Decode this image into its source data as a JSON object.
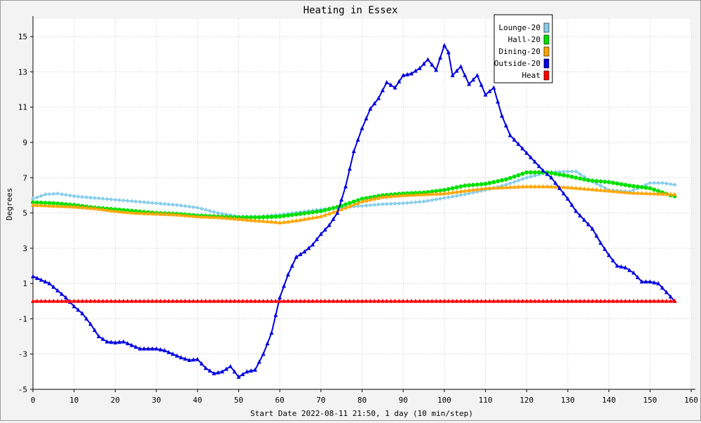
{
  "chart_data": {
    "type": "line",
    "title": "Heating in Essex",
    "xlabel": "Start Date 2022-08-11 21:50, 1 day (10 min/step)",
    "ylabel": "Degrees",
    "xlim": [
      0,
      160
    ],
    "ylim": [
      -5,
      16
    ],
    "xticks": [
      0,
      10,
      20,
      30,
      40,
      50,
      60,
      70,
      80,
      90,
      100,
      110,
      120,
      130,
      140,
      150,
      160
    ],
    "yticks": [
      -5,
      -3,
      -1,
      1,
      3,
      5,
      7,
      9,
      11,
      13,
      15
    ],
    "grid": true,
    "legend_position": "top-right",
    "series": [
      {
        "name": "Lounge-20",
        "color": "#87ceeb",
        "marker": "diamond",
        "points": [
          [
            0,
            5.8
          ],
          [
            3,
            6.05
          ],
          [
            6,
            6.1
          ],
          [
            10,
            5.95
          ],
          [
            15,
            5.85
          ],
          [
            20,
            5.75
          ],
          [
            25,
            5.65
          ],
          [
            30,
            5.55
          ],
          [
            35,
            5.45
          ],
          [
            40,
            5.3
          ],
          [
            45,
            5.0
          ],
          [
            50,
            4.8
          ],
          [
            55,
            4.8
          ],
          [
            60,
            4.9
          ],
          [
            65,
            5.05
          ],
          [
            70,
            5.2
          ],
          [
            75,
            5.3
          ],
          [
            80,
            5.4
          ],
          [
            85,
            5.5
          ],
          [
            90,
            5.55
          ],
          [
            95,
            5.65
          ],
          [
            100,
            5.85
          ],
          [
            105,
            6.05
          ],
          [
            110,
            6.3
          ],
          [
            115,
            6.6
          ],
          [
            120,
            7.0
          ],
          [
            125,
            7.3
          ],
          [
            130,
            7.35
          ],
          [
            132,
            7.35
          ],
          [
            135,
            6.9
          ],
          [
            140,
            6.3
          ],
          [
            145,
            6.2
          ],
          [
            150,
            6.7
          ],
          [
            153,
            6.7
          ],
          [
            156,
            6.6
          ]
        ]
      },
      {
        "name": "Hall-20",
        "color": "#00e000",
        "marker": "circle",
        "points": [
          [
            0,
            5.6
          ],
          [
            5,
            5.55
          ],
          [
            10,
            5.45
          ],
          [
            15,
            5.3
          ],
          [
            20,
            5.2
          ],
          [
            25,
            5.1
          ],
          [
            30,
            5.0
          ],
          [
            35,
            4.95
          ],
          [
            40,
            4.85
          ],
          [
            45,
            4.8
          ],
          [
            50,
            4.75
          ],
          [
            55,
            4.75
          ],
          [
            60,
            4.8
          ],
          [
            65,
            4.95
          ],
          [
            70,
            5.1
          ],
          [
            75,
            5.4
          ],
          [
            80,
            5.8
          ],
          [
            85,
            6.0
          ],
          [
            90,
            6.1
          ],
          [
            95,
            6.15
          ],
          [
            100,
            6.3
          ],
          [
            105,
            6.55
          ],
          [
            110,
            6.65
          ],
          [
            115,
            6.9
          ],
          [
            120,
            7.3
          ],
          [
            125,
            7.3
          ],
          [
            130,
            7.1
          ],
          [
            135,
            6.85
          ],
          [
            140,
            6.75
          ],
          [
            145,
            6.55
          ],
          [
            150,
            6.4
          ],
          [
            155,
            6.0
          ],
          [
            156,
            5.95
          ]
        ]
      },
      {
        "name": "Dining-20",
        "color": "#ffa500",
        "marker": "triangle",
        "points": [
          [
            0,
            5.45
          ],
          [
            5,
            5.4
          ],
          [
            10,
            5.35
          ],
          [
            15,
            5.25
          ],
          [
            20,
            5.1
          ],
          [
            25,
            5.0
          ],
          [
            30,
            4.95
          ],
          [
            35,
            4.9
          ],
          [
            40,
            4.8
          ],
          [
            45,
            4.75
          ],
          [
            50,
            4.65
          ],
          [
            55,
            4.55
          ],
          [
            58,
            4.5
          ],
          [
            60,
            4.45
          ],
          [
            62,
            4.5
          ],
          [
            65,
            4.6
          ],
          [
            70,
            4.8
          ],
          [
            75,
            5.2
          ],
          [
            80,
            5.65
          ],
          [
            85,
            5.9
          ],
          [
            90,
            6.0
          ],
          [
            95,
            6.05
          ],
          [
            100,
            6.1
          ],
          [
            105,
            6.25
          ],
          [
            110,
            6.4
          ],
          [
            115,
            6.45
          ],
          [
            120,
            6.5
          ],
          [
            125,
            6.5
          ],
          [
            130,
            6.45
          ],
          [
            135,
            6.35
          ],
          [
            140,
            6.25
          ],
          [
            145,
            6.15
          ],
          [
            150,
            6.1
          ],
          [
            156,
            6.05
          ]
        ]
      },
      {
        "name": "Outside-20",
        "color": "#0000e0",
        "marker": "triangle",
        "points": [
          [
            0,
            1.4
          ],
          [
            2,
            1.2
          ],
          [
            4,
            1.0
          ],
          [
            6,
            0.6
          ],
          [
            8,
            0.2
          ],
          [
            10,
            -0.3
          ],
          [
            12,
            -0.7
          ],
          [
            14,
            -1.3
          ],
          [
            16,
            -2.0
          ],
          [
            18,
            -2.3
          ],
          [
            20,
            -2.35
          ],
          [
            22,
            -2.3
          ],
          [
            24,
            -2.5
          ],
          [
            26,
            -2.7
          ],
          [
            28,
            -2.7
          ],
          [
            30,
            -2.7
          ],
          [
            32,
            -2.8
          ],
          [
            34,
            -3.0
          ],
          [
            36,
            -3.2
          ],
          [
            38,
            -3.35
          ],
          [
            40,
            -3.3
          ],
          [
            42,
            -3.8
          ],
          [
            44,
            -4.1
          ],
          [
            46,
            -4.0
          ],
          [
            48,
            -3.7
          ],
          [
            50,
            -4.3
          ],
          [
            52,
            -4.0
          ],
          [
            54,
            -3.9
          ],
          [
            56,
            -3.0
          ],
          [
            58,
            -1.8
          ],
          [
            59,
            -0.8
          ],
          [
            60,
            0.2
          ],
          [
            62,
            1.5
          ],
          [
            64,
            2.5
          ],
          [
            66,
            2.8
          ],
          [
            68,
            3.2
          ],
          [
            70,
            3.8
          ],
          [
            72,
            4.3
          ],
          [
            74,
            5.0
          ],
          [
            76,
            6.5
          ],
          [
            78,
            8.5
          ],
          [
            80,
            9.8
          ],
          [
            82,
            10.9
          ],
          [
            84,
            11.5
          ],
          [
            86,
            12.4
          ],
          [
            88,
            12.1
          ],
          [
            90,
            12.8
          ],
          [
            92,
            12.9
          ],
          [
            94,
            13.2
          ],
          [
            96,
            13.7
          ],
          [
            98,
            13.1
          ],
          [
            100,
            14.5
          ],
          [
            101,
            14.1
          ],
          [
            102,
            12.8
          ],
          [
            104,
            13.3
          ],
          [
            106,
            12.3
          ],
          [
            108,
            12.8
          ],
          [
            110,
            11.7
          ],
          [
            112,
            12.1
          ],
          [
            114,
            10.5
          ],
          [
            116,
            9.4
          ],
          [
            118,
            8.9
          ],
          [
            120,
            8.4
          ],
          [
            122,
            7.9
          ],
          [
            124,
            7.4
          ],
          [
            126,
            7.0
          ],
          [
            128,
            6.4
          ],
          [
            130,
            5.8
          ],
          [
            132,
            5.1
          ],
          [
            134,
            4.6
          ],
          [
            136,
            4.1
          ],
          [
            138,
            3.3
          ],
          [
            140,
            2.6
          ],
          [
            142,
            2.0
          ],
          [
            144,
            1.9
          ],
          [
            146,
            1.6
          ],
          [
            148,
            1.1
          ],
          [
            150,
            1.1
          ],
          [
            152,
            1.0
          ],
          [
            154,
            0.5
          ],
          [
            156,
            0.0
          ]
        ]
      },
      {
        "name": "Heat",
        "color": "#ff0000",
        "marker": "triangle",
        "points": [
          [
            0,
            0.0
          ],
          [
            156,
            0.0
          ]
        ]
      }
    ]
  }
}
